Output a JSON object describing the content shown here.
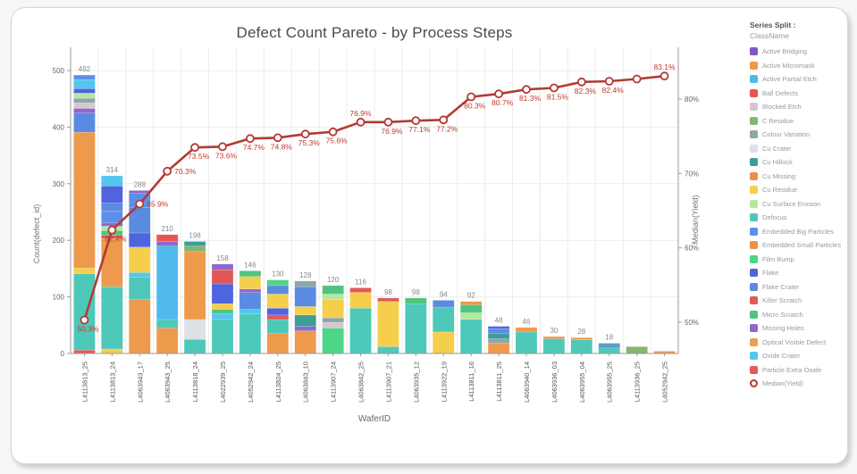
{
  "title": "Defect Count Pareto - by Process Steps",
  "axes": {
    "x_title": "WaferID",
    "y_left_title": "Count(defect_id)",
    "y_right_title": "Median(Yield)",
    "y_left_ticks": [
      0,
      100,
      200,
      300,
      400,
      500
    ],
    "y_right_ticks": [
      {
        "value": 50,
        "label": "50%"
      },
      {
        "value": 60,
        "label": "60%"
      },
      {
        "value": 70,
        "label": "70%"
      },
      {
        "value": 80,
        "label": "80%"
      }
    ]
  },
  "legend": {
    "header": "Series Split :",
    "subheader": "ClassName",
    "items": [
      {
        "label": "Active Bridging",
        "color": "#7E57C2"
      },
      {
        "label": "Active Micromask",
        "color": "#EE9A4D"
      },
      {
        "label": "Active Partial Etch",
        "color": "#4FB9EA"
      },
      {
        "label": "Ball Defects",
        "color": "#EA5455"
      },
      {
        "label": "Blocked Etch",
        "color": "#D8C7CE"
      },
      {
        "label": "C Residue",
        "color": "#85B56E"
      },
      {
        "label": "Colour Variation",
        "color": "#8FA6A9"
      },
      {
        "label": "Cu Crater",
        "color": "#DCE1E6"
      },
      {
        "label": "Cu Hillock",
        "color": "#3D9E97"
      },
      {
        "label": "Cu Missing",
        "color": "#EC9049"
      },
      {
        "label": "Cu Residue",
        "color": "#F5CE4C"
      },
      {
        "label": "Cu Surface Erosion",
        "color": "#B5E7A0"
      },
      {
        "label": "Defocus",
        "color": "#4EC8B9"
      },
      {
        "label": "Embedded Big Particles",
        "color": "#5D8FE8"
      },
      {
        "label": "Embedded Small Particles",
        "color": "#EC9049"
      },
      {
        "label": "Film Bump",
        "color": "#4CD787"
      },
      {
        "label": "Flake",
        "color": "#5064DE"
      },
      {
        "label": "Flake Crater",
        "color": "#5A8BE0"
      },
      {
        "label": "Killer Scratch",
        "color": "#E25858"
      },
      {
        "label": "Micro Scratch",
        "color": "#4FC47E"
      },
      {
        "label": "Missing Holes",
        "color": "#9068C9"
      },
      {
        "label": "Optical Visible Defect",
        "color": "#E9A14E"
      },
      {
        "label": "Oxide Crater",
        "color": "#54C6EF"
      },
      {
        "label": "Particle Extra Oxide",
        "color": "#E85A5A"
      }
    ],
    "line_item": {
      "label": "Median(Yield)",
      "color": "#B23B34"
    }
  },
  "chart_data": {
    "type": "bar",
    "variant": "pareto_stacked_bars_with_cumulative_line",
    "title": "Defect Count Pareto - by Process Steps",
    "xlabel": "WaferID",
    "ylabel_left": "Count(defect_id)",
    "ylabel_right": "Median(Yield)",
    "ylim_left": [
      0,
      500
    ],
    "ylim_right_percent": [
      48,
      85
    ],
    "grid": true,
    "legend_position": "right",
    "categories": [
      "L4113813_25",
      "L4113813_24",
      "L4063943_17",
      "L4063943_25",
      "L4113818_24",
      "L4022939_25",
      "L4052942_24",
      "L4113824_25",
      "L4063843_10",
      "L4113907_24",
      "L4063842_25",
      "L4113907_21",
      "L4063935_12",
      "L4113922_19",
      "L4113811_16",
      "L4113811_25",
      "L4063940_14",
      "L4063936_03",
      "L4063955_04",
      "L4063955_25",
      "L4113936_25",
      "L4052942_25"
    ],
    "bar_totals": [
      492,
      314,
      288,
      210,
      198,
      158,
      146,
      130,
      128,
      120,
      116,
      98,
      98,
      94,
      92,
      48,
      46,
      30,
      28,
      18,
      12,
      4
    ],
    "bar_total_labels": [
      "492",
      "314",
      "288",
      "210",
      "198",
      "158",
      "146",
      "130",
      "128",
      "120",
      "116",
      "98",
      "98",
      "94",
      "92",
      "48",
      "46",
      "30",
      "28",
      "18",
      "",
      ""
    ],
    "bars": [
      {
        "segments": [
          {
            "class": "Ball Defects",
            "value": 6
          },
          {
            "class": "Defocus",
            "value": 135
          },
          {
            "class": "Cu Residue",
            "value": 10
          },
          {
            "class": "Active Micromask",
            "value": 240
          },
          {
            "class": "Flake Crater",
            "value": 34
          },
          {
            "class": "Missing Holes",
            "value": 8
          },
          {
            "class": "Blocked Etch",
            "value": 10
          },
          {
            "class": "Colour Variation",
            "value": 8
          },
          {
            "class": "Cu Surface Erosion",
            "value": 9
          },
          {
            "class": "Flake",
            "value": 8
          },
          {
            "class": "Oxide Crater",
            "value": 16
          },
          {
            "class": "Embedded Big Particles",
            "value": 8
          }
        ]
      },
      {
        "segments": [
          {
            "class": "Cu Residue",
            "value": 8
          },
          {
            "class": "Defocus",
            "value": 110
          },
          {
            "class": "Active Micromask",
            "value": 85
          },
          {
            "class": "Killer Scratch",
            "value": 6
          },
          {
            "class": "Micro Scratch",
            "value": 8
          },
          {
            "class": "Cu Surface Erosion",
            "value": 8
          },
          {
            "class": "Missing Holes",
            "value": 6
          },
          {
            "class": "Embedded Big Particles",
            "value": 20
          },
          {
            "class": "Flake Crater",
            "value": 15
          },
          {
            "class": "Flake",
            "value": 30
          },
          {
            "class": "Oxide Crater",
            "value": 18
          }
        ]
      },
      {
        "segments": [
          {
            "class": "Active Micromask",
            "value": 95
          },
          {
            "class": "Defocus",
            "value": 40
          },
          {
            "class": "Oxide Crater",
            "value": 8
          },
          {
            "class": "Cu Residue",
            "value": 45
          },
          {
            "class": "Flake",
            "value": 25
          },
          {
            "class": "Flake Crater",
            "value": 45
          },
          {
            "class": "Embedded Big Particles",
            "value": 25
          },
          {
            "class": "Missing Holes",
            "value": 5
          }
        ]
      },
      {
        "segments": [
          {
            "class": "Active Micromask",
            "value": 45
          },
          {
            "class": "Defocus",
            "value": 15
          },
          {
            "class": "Active Partial Etch",
            "value": 130
          },
          {
            "class": "Missing Holes",
            "value": 8
          },
          {
            "class": "Ball Defects",
            "value": 12
          }
        ]
      },
      {
        "segments": [
          {
            "class": "Defocus",
            "value": 25
          },
          {
            "class": "Cu Crater",
            "value": 35
          },
          {
            "class": "Active Micromask",
            "value": 120
          },
          {
            "class": "C Residue",
            "value": 10
          },
          {
            "class": "Cu Hillock",
            "value": 8
          }
        ]
      },
      {
        "segments": [
          {
            "class": "Defocus",
            "value": 60
          },
          {
            "class": "Oxide Crater",
            "value": 10
          },
          {
            "class": "Micro Scratch",
            "value": 8
          },
          {
            "class": "Cu Residue",
            "value": 10
          },
          {
            "class": "Flake",
            "value": 35
          },
          {
            "class": "Killer Scratch",
            "value": 25
          },
          {
            "class": "Missing Holes",
            "value": 10
          }
        ]
      },
      {
        "segments": [
          {
            "class": "Defocus",
            "value": 70
          },
          {
            "class": "Oxide Crater",
            "value": 8
          },
          {
            "class": "Flake Crater",
            "value": 30
          },
          {
            "class": "Missing Holes",
            "value": 6
          },
          {
            "class": "Cu Residue",
            "value": 22
          },
          {
            "class": "Micro Scratch",
            "value": 10
          }
        ]
      },
      {
        "segments": [
          {
            "class": "Active Micromask",
            "value": 35
          },
          {
            "class": "Defocus",
            "value": 25
          },
          {
            "class": "Killer Scratch",
            "value": 8
          },
          {
            "class": "Flake",
            "value": 12
          },
          {
            "class": "Cu Residue",
            "value": 25
          },
          {
            "class": "Flake Crater",
            "value": 15
          },
          {
            "class": "Film Bump",
            "value": 10
          }
        ]
      },
      {
        "segments": [
          {
            "class": "Active Micromask",
            "value": 40
          },
          {
            "class": "Missing Holes",
            "value": 8
          },
          {
            "class": "Cu Hillock",
            "value": 20
          },
          {
            "class": "Cu Residue",
            "value": 15
          },
          {
            "class": "Flake Crater",
            "value": 35
          },
          {
            "class": "Colour Variation",
            "value": 10
          }
        ]
      },
      {
        "segments": [
          {
            "class": "Film Bump",
            "value": 45
          },
          {
            "class": "Blocked Etch",
            "value": 10
          },
          {
            "class": "Colour Variation",
            "value": 8
          },
          {
            "class": "Cu Residue",
            "value": 32
          },
          {
            "class": "Cu Surface Erosion",
            "value": 10
          },
          {
            "class": "Micro Scratch",
            "value": 15
          }
        ]
      },
      {
        "segments": [
          {
            "class": "Defocus",
            "value": 80
          },
          {
            "class": "Cu Residue",
            "value": 28
          },
          {
            "class": "Killer Scratch",
            "value": 8
          }
        ]
      },
      {
        "segments": [
          {
            "class": "Defocus",
            "value": 12
          },
          {
            "class": "Cu Residue",
            "value": 80
          },
          {
            "class": "Killer Scratch",
            "value": 6
          }
        ]
      },
      {
        "segments": [
          {
            "class": "Defocus",
            "value": 88
          },
          {
            "class": "Micro Scratch",
            "value": 10
          }
        ]
      },
      {
        "segments": [
          {
            "class": "Cu Residue",
            "value": 38
          },
          {
            "class": "Defocus",
            "value": 44
          },
          {
            "class": "Flake Crater",
            "value": 12
          }
        ]
      },
      {
        "segments": [
          {
            "class": "Defocus",
            "value": 60
          },
          {
            "class": "Cu Surface Erosion",
            "value": 12
          },
          {
            "class": "Micro Scratch",
            "value": 14
          },
          {
            "class": "Active Micromask",
            "value": 6
          }
        ]
      },
      {
        "segments": [
          {
            "class": "Active Micromask",
            "value": 18
          },
          {
            "class": "Colour Variation",
            "value": 8
          },
          {
            "class": "Cu Hillock",
            "value": 10
          },
          {
            "class": "Flake Crater",
            "value": 8
          },
          {
            "class": "Flake",
            "value": 4
          }
        ]
      },
      {
        "segments": [
          {
            "class": "Defocus",
            "value": 38
          },
          {
            "class": "Active Micromask",
            "value": 8
          }
        ]
      },
      {
        "segments": [
          {
            "class": "Defocus",
            "value": 26
          },
          {
            "class": "Active Micromask",
            "value": 4
          }
        ]
      },
      {
        "segments": [
          {
            "class": "Defocus",
            "value": 24
          },
          {
            "class": "Active Micromask",
            "value": 4
          }
        ]
      },
      {
        "segments": [
          {
            "class": "Defocus",
            "value": 10
          },
          {
            "class": "Flake Crater",
            "value": 5
          },
          {
            "class": "Cu Hillock",
            "value": 3
          }
        ]
      },
      {
        "segments": [
          {
            "class": "C Residue",
            "value": 12
          }
        ]
      },
      {
        "segments": [
          {
            "class": "Active Micromask",
            "value": 4
          }
        ]
      }
    ],
    "line": {
      "name": "Median(Yield)",
      "values_percent": [
        50.3,
        62.4,
        65.9,
        70.3,
        73.5,
        73.6,
        74.7,
        74.8,
        75.3,
        75.6,
        76.9,
        76.9,
        77.1,
        77.2,
        80.3,
        80.7,
        81.3,
        81.5,
        82.3,
        82.4,
        82.7,
        83.1
      ],
      "labels": [
        "50.3%",
        "62.4%",
        "65.9%",
        "70.3%",
        "73.5%",
        "73.6%",
        "74.7%",
        "74.8%",
        "75.3%",
        "75.6%",
        "76.9%",
        "76.9%",
        "77.1%",
        "77.2%",
        "80.3%",
        "80.7%",
        "81.3%",
        "81.5%",
        "82.3%",
        "82.4%",
        "",
        "83.1%"
      ],
      "label_pos": [
        "below",
        "below",
        "right",
        "right",
        "below",
        "below",
        "below",
        "below",
        "below",
        "below",
        "above",
        "below",
        "below",
        "below",
        "below",
        "below",
        "below",
        "below",
        "below",
        "below",
        "none",
        "above"
      ],
      "color": "#B23B34"
    }
  }
}
